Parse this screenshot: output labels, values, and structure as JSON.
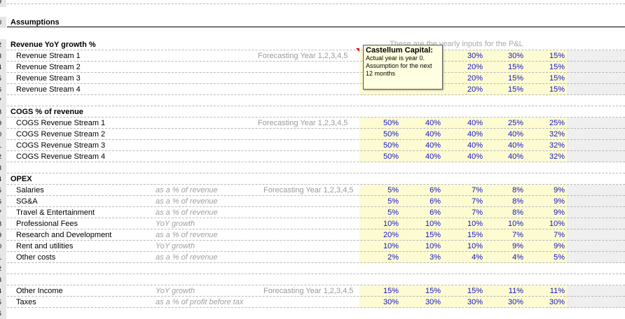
{
  "sheet": {
    "title": "Assumptions",
    "overlay_text": "These are the yearly inputs for the P&L",
    "rownums": [
      "9",
      "0",
      "2",
      "3",
      "4",
      "5",
      "6",
      "7",
      "8",
      "9",
      "0",
      "1",
      "2",
      "3",
      "4",
      "5",
      "6",
      "7",
      "8",
      "9",
      "0",
      "1",
      "2",
      "3",
      "4",
      "5",
      "6"
    ]
  },
  "comment": {
    "author": "Castellum Capital:",
    "line1": "Actual year is year 0.",
    "line2": "Assumption for the next",
    "line3": "12 months"
  },
  "revenue": {
    "header": "Revenue YoY growth %",
    "forecast_label": "Forecasting Year 1,2,3,4,5",
    "rows": [
      {
        "label": "Revenue Stream 1",
        "values": [
          "",
          "",
          "30%",
          "30%",
          "15%"
        ]
      },
      {
        "label": "Revenue Stream 2",
        "values": [
          "",
          "",
          "20%",
          "15%",
          "15%"
        ]
      },
      {
        "label": "Revenue Stream 3",
        "values": [
          "",
          "",
          "20%",
          "15%",
          "15%"
        ]
      },
      {
        "label": "Revenue Stream 4",
        "values": [
          "",
          "",
          "20%",
          "15%",
          "15%"
        ]
      }
    ]
  },
  "cogs": {
    "header": "COGS % of revenue",
    "forecast_label": "Forecasting Year 1,2,3,4,5",
    "rows": [
      {
        "label": "COGS Revenue Stream 1",
        "values": [
          "50%",
          "40%",
          "40%",
          "25%",
          "25%"
        ]
      },
      {
        "label": "COGS Revenue Stream 2",
        "values": [
          "50%",
          "40%",
          "40%",
          "40%",
          "32%"
        ]
      },
      {
        "label": "COGS Revenue Stream 3",
        "values": [
          "50%",
          "40%",
          "40%",
          "40%",
          "32%"
        ]
      },
      {
        "label": "COGS Revenue Stream 4",
        "values": [
          "50%",
          "40%",
          "40%",
          "40%",
          "32%"
        ]
      }
    ]
  },
  "opex": {
    "header": "OPEX",
    "forecast_label": "Forecasting Year 1,2,3,4,5",
    "rows": [
      {
        "label": "Salaries",
        "hint": "as a % of revenue",
        "values": [
          "5%",
          "6%",
          "7%",
          "8%",
          "9%"
        ]
      },
      {
        "label": "SG&A",
        "hint": "as a % of revenue",
        "values": [
          "5%",
          "6%",
          "7%",
          "8%",
          "9%"
        ]
      },
      {
        "label": "Travel & Entertainment",
        "hint": "as a % of revenue",
        "values": [
          "5%",
          "6%",
          "7%",
          "8%",
          "9%"
        ]
      },
      {
        "label": "Professional Fees",
        "hint": "YoY growth",
        "values": [
          "10%",
          "10%",
          "10%",
          "10%",
          "10%"
        ]
      },
      {
        "label": "Research and Development",
        "hint": "as a % of revenue",
        "values": [
          "20%",
          "15%",
          "15%",
          "7%",
          "7%"
        ]
      },
      {
        "label": "Rent and utilities",
        "hint": "YoY growth",
        "values": [
          "10%",
          "10%",
          "10%",
          "9%",
          "9%"
        ]
      },
      {
        "label": "Other costs",
        "hint": "as a % of revenue",
        "values": [
          "2%",
          "3%",
          "4%",
          "4%",
          "5%"
        ]
      }
    ]
  },
  "other": {
    "forecast_label": "Forecasting Year 1,2,3,4,5",
    "rows": [
      {
        "label": "Other Income",
        "hint": "YoY growth",
        "values": [
          "15%",
          "15%",
          "15%",
          "11%",
          "11%"
        ]
      },
      {
        "label": "Taxes",
        "hint": "as a % of profit before tax",
        "values": [
          "30%",
          "30%",
          "30%",
          "30%",
          "30%"
        ]
      }
    ]
  }
}
